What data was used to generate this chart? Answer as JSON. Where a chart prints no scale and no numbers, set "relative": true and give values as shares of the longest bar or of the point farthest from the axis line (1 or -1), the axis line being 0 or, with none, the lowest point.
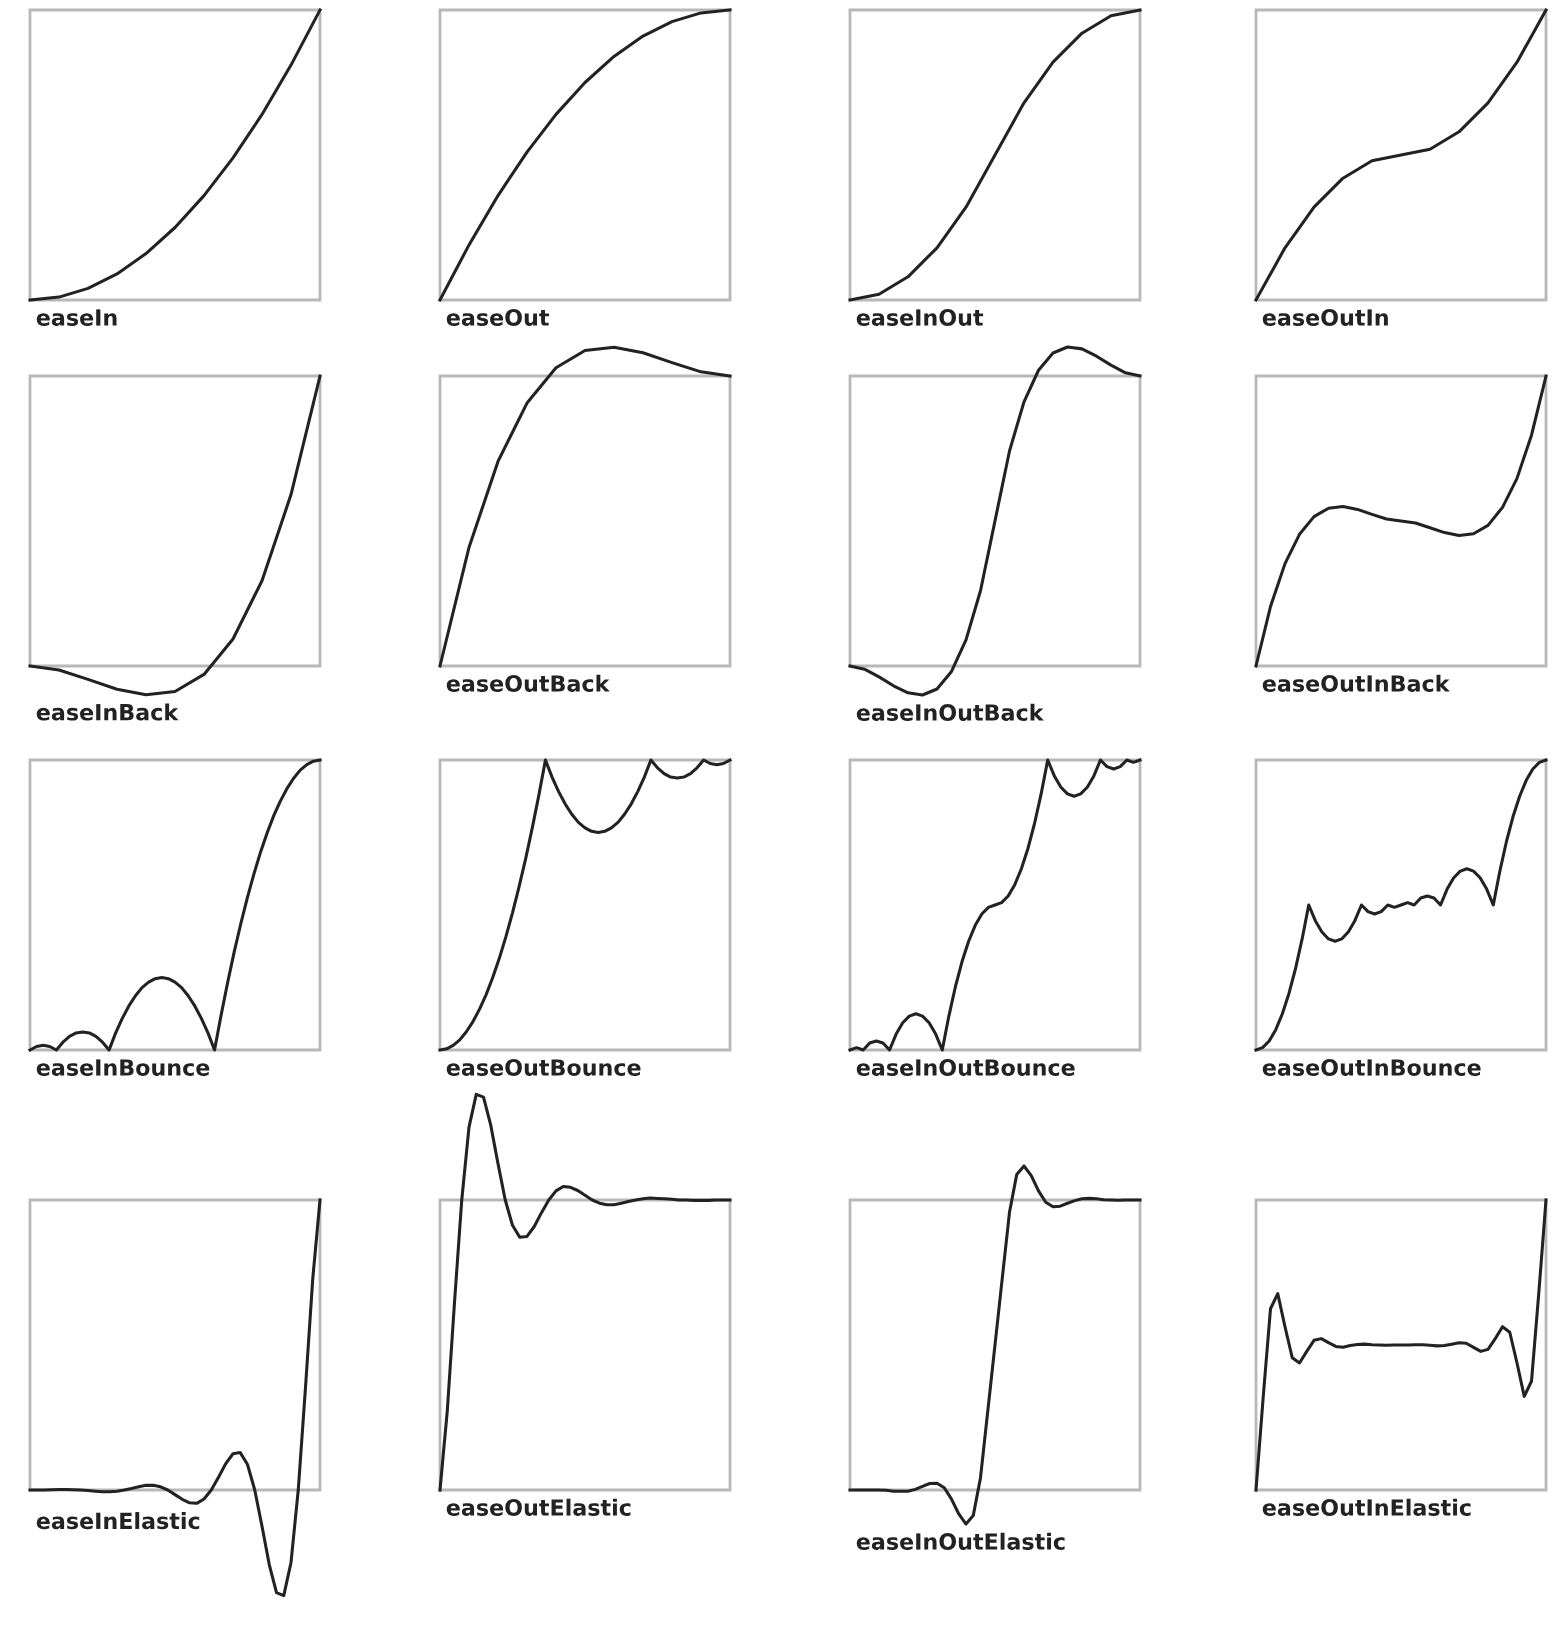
{
  "chart_data": [
    {
      "type": "line",
      "title": "easeIn",
      "relative": true,
      "categories": [
        null,
        null,
        null,
        null,
        null,
        null,
        null,
        null,
        null,
        null,
        null
      ],
      "series": [
        {
          "color": "#222222",
          "values": [
            0,
            0.01,
            0.04,
            0.09,
            0.16,
            0.25,
            0.36,
            0.49,
            0.64,
            0.81,
            1
          ]
        }
      ]
    },
    {
      "type": "line",
      "title": "easeOut",
      "relative": true,
      "categories": [
        null,
        null,
        null,
        null,
        null,
        null,
        null,
        null,
        null,
        null,
        null
      ],
      "series": [
        {
          "color": "#222222",
          "values": [
            0,
            0.19,
            0.36,
            0.51,
            0.64,
            0.75,
            0.84,
            0.91,
            0.96,
            0.99,
            1
          ]
        }
      ]
    },
    {
      "type": "line",
      "title": "easeInOut",
      "relative": true,
      "categories": [
        null,
        null,
        null,
        null,
        null,
        null,
        null,
        null,
        null,
        null,
        null
      ],
      "series": [
        {
          "color": "#222222",
          "values": [
            0,
            0.02,
            0.08,
            0.18,
            0.32,
            0.5,
            0.68,
            0.82,
            0.92,
            0.98,
            1
          ]
        }
      ]
    },
    {
      "type": "line",
      "title": "easeOutIn",
      "relative": true,
      "categories": [
        null,
        null,
        null,
        null,
        null,
        null,
        null,
        null,
        null,
        null,
        null
      ],
      "series": [
        {
          "color": "#222222",
          "values": [
            0,
            0.18,
            0.32,
            0.42,
            0.48,
            0.5,
            0.52,
            0.58,
            0.68,
            0.82,
            1
          ]
        }
      ]
    },
    {
      "type": "line",
      "title": "easeInBack",
      "relative": true,
      "categories": [
        null,
        null,
        null,
        null,
        null,
        null,
        null,
        null,
        null,
        null,
        null
      ],
      "series": [
        {
          "color": "#222222",
          "values": [
            0,
            -0.014,
            -0.046,
            -0.08,
            -0.099,
            -0.088,
            -0.029,
            0.093,
            0.294,
            0.591,
            1
          ]
        }
      ]
    },
    {
      "type": "line",
      "title": "easeOutBack",
      "relative": true,
      "categories": [
        null,
        null,
        null,
        null,
        null,
        null,
        null,
        null,
        null,
        null,
        null
      ],
      "series": [
        {
          "color": "#222222",
          "values": [
            0,
            0.372,
            0.642,
            0.825,
            0.936,
            0.99,
            1,
            0.983,
            0.952,
            0.923,
            0.91
          ]
        }
      ]
    },
    {
      "type": "line",
      "title": "easeInOutBack",
      "relative": true,
      "categories": [
        null,
        null,
        null,
        null,
        null,
        null,
        null,
        null,
        null,
        null,
        null,
        null,
        null,
        null,
        null,
        null,
        null,
        null,
        null,
        null,
        null
      ],
      "series": [
        {
          "color": "#222222",
          "values": [
            0,
            -0.01,
            -0.034,
            -0.062,
            -0.084,
            -0.091,
            -0.072,
            -0.017,
            0.082,
            0.236,
            0.455,
            0.674,
            0.828,
            0.927,
            0.981,
            1,
            0.994,
            0.971,
            0.943,
            0.919,
            0.909
          ]
        }
      ]
    },
    {
      "type": "line",
      "title": "easeOutInBack",
      "relative": true,
      "categories": [
        null,
        null,
        null,
        null,
        null,
        null,
        null,
        null,
        null,
        null,
        null,
        null,
        null,
        null,
        null,
        null,
        null,
        null,
        null,
        null,
        null
      ],
      "series": [
        {
          "color": "#222222",
          "values": [
            0,
            0.205,
            0.353,
            0.454,
            0.515,
            0.544,
            0.55,
            0.54,
            0.523,
            0.507,
            0.5,
            0.493,
            0.477,
            0.46,
            0.45,
            0.456,
            0.485,
            0.547,
            0.647,
            0.796,
            1
          ]
        }
      ]
    },
    {
      "type": "line",
      "title": "easeInBounce",
      "relative": true,
      "categories": [
        null,
        null,
        null,
        null,
        null,
        null,
        null,
        null,
        null,
        null,
        null,
        null,
        null,
        null,
        null,
        null,
        null,
        null,
        null,
        null,
        null,
        null,
        null,
        null,
        null,
        null,
        null,
        null,
        null,
        null,
        null,
        null,
        null,
        null,
        null,
        null,
        null,
        null,
        null,
        null,
        null,
        null,
        null,
        null,
        null
      ],
      "series": [
        {
          "color": "#222222",
          "values": [
            0,
            0.012,
            0.016,
            0.012,
            0,
            0.027,
            0.047,
            0.059,
            0.062,
            0.059,
            0.047,
            0.027,
            0,
            0.059,
            0.109,
            0.152,
            0.187,
            0.215,
            0.234,
            0.246,
            0.25,
            0.246,
            0.234,
            0.215,
            0.187,
            0.152,
            0.109,
            0.059,
            0,
            0.121,
            0.234,
            0.34,
            0.437,
            0.527,
            0.609,
            0.684,
            0.75,
            0.809,
            0.859,
            0.902,
            0.937,
            0.965,
            0.984,
            0.996,
            1
          ]
        }
      ]
    },
    {
      "type": "line",
      "title": "easeOutBounce",
      "relative": true,
      "categories": [
        null,
        null,
        null,
        null,
        null,
        null,
        null,
        null,
        null,
        null,
        null,
        null,
        null,
        null,
        null,
        null,
        null,
        null,
        null,
        null,
        null,
        null,
        null,
        null,
        null,
        null,
        null,
        null,
        null,
        null,
        null,
        null,
        null,
        null,
        null,
        null,
        null,
        null,
        null,
        null,
        null,
        null,
        null,
        null,
        null
      ],
      "series": [
        {
          "color": "#222222",
          "values": [
            0,
            0.004,
            0.016,
            0.035,
            0.063,
            0.098,
            0.141,
            0.191,
            0.25,
            0.316,
            0.391,
            0.473,
            0.563,
            0.66,
            0.766,
            0.879,
            1,
            0.941,
            0.891,
            0.848,
            0.813,
            0.785,
            0.766,
            0.754,
            0.75,
            0.754,
            0.766,
            0.785,
            0.813,
            0.848,
            0.891,
            0.941,
            1,
            0.973,
            0.953,
            0.941,
            0.938,
            0.941,
            0.953,
            0.973,
            1,
            0.988,
            0.984,
            0.988,
            1
          ]
        }
      ]
    },
    {
      "type": "line",
      "title": "easeInOutBounce",
      "relative": true,
      "categories": [
        null,
        null,
        null,
        null,
        null,
        null,
        null,
        null,
        null,
        null,
        null,
        null,
        null,
        null,
        null,
        null,
        null,
        null,
        null,
        null,
        null,
        null,
        null,
        null,
        null,
        null,
        null,
        null,
        null,
        null,
        null,
        null,
        null,
        null,
        null,
        null,
        null,
        null,
        null,
        null,
        null,
        null,
        null,
        null,
        null
      ],
      "series": [
        {
          "color": "#222222",
          "values": [
            0,
            0.008,
            0,
            0.024,
            0.031,
            0.024,
            0,
            0.055,
            0.094,
            0.117,
            0.125,
            0.117,
            0.094,
            0.055,
            0,
            0.117,
            0.219,
            0.305,
            0.375,
            0.43,
            0.469,
            0.492,
            0.5,
            0.508,
            0.531,
            0.57,
            0.625,
            0.695,
            0.781,
            0.883,
            1,
            0.945,
            0.906,
            0.883,
            0.875,
            0.883,
            0.906,
            0.945,
            1,
            0.977,
            0.969,
            0.977,
            1,
            0.992,
            1
          ]
        }
      ]
    },
    {
      "type": "line",
      "title": "easeOutInBounce",
      "relative": true,
      "categories": [
        null,
        null,
        null,
        null,
        null,
        null,
        null,
        null,
        null,
        null,
        null,
        null,
        null,
        null,
        null,
        null,
        null,
        null,
        null,
        null,
        null,
        null,
        null,
        null,
        null,
        null,
        null,
        null,
        null,
        null,
        null,
        null,
        null,
        null,
        null,
        null,
        null,
        null,
        null,
        null,
        null,
        null,
        null,
        null,
        null
      ],
      "series": [
        {
          "color": "#222222",
          "values": [
            0,
            0.008,
            0.031,
            0.07,
            0.125,
            0.195,
            0.281,
            0.383,
            0.5,
            0.446,
            0.407,
            0.383,
            0.375,
            0.383,
            0.407,
            0.446,
            0.5,
            0.477,
            0.469,
            0.477,
            0.5,
            0.492,
            0.5,
            0.508,
            0.5,
            0.524,
            0.531,
            0.524,
            0.5,
            0.555,
            0.594,
            0.617,
            0.625,
            0.617,
            0.594,
            0.555,
            0.5,
            0.617,
            0.719,
            0.805,
            0.875,
            0.93,
            0.969,
            0.992,
            1
          ]
        }
      ]
    },
    {
      "type": "line",
      "title": "easeInElastic",
      "relative": true,
      "categories": [
        null,
        null,
        null,
        null,
        null,
        null,
        null,
        null,
        null,
        null,
        null,
        null,
        null,
        null,
        null,
        null,
        null,
        null,
        null,
        null,
        null,
        null,
        null,
        null,
        null,
        null,
        null,
        null,
        null,
        null,
        null,
        null,
        null,
        null,
        null,
        null,
        null,
        null,
        null,
        null,
        null
      ],
      "series": [
        {
          "color": "#222222",
          "values": [
            0,
            0,
            0,
            0.001,
            0.002,
            0.002,
            0.001,
            0,
            -0.002,
            -0.004,
            -0.006,
            -0.006,
            -0.004,
            0,
            0.005,
            0.011,
            0.016,
            0.016,
            0.011,
            0,
            -0.016,
            -0.032,
            -0.044,
            -0.046,
            -0.031,
            0,
            0.044,
            0.091,
            0.125,
            0.129,
            0.088,
            0,
            -0.125,
            -0.257,
            -0.354,
            -0.364,
            -0.25,
            0,
            0.354,
            0.728,
            1
          ]
        }
      ]
    },
    {
      "type": "line",
      "title": "easeOutElastic",
      "relative": true,
      "categories": [
        null,
        null,
        null,
        null,
        null,
        null,
        null,
        null,
        null,
        null,
        null,
        null,
        null,
        null,
        null,
        null,
        null,
        null,
        null,
        null,
        null,
        null,
        null,
        null,
        null,
        null,
        null,
        null,
        null,
        null,
        null,
        null,
        null,
        null,
        null,
        null,
        null,
        null,
        null,
        null,
        null
      ],
      "series": [
        {
          "color": "#222222",
          "values": [
            0,
            0.199,
            0.474,
            0.733,
            0.917,
            1,
            0.993,
            0.922,
            0.825,
            0.733,
            0.669,
            0.639,
            0.641,
            0.666,
            0.701,
            0.733,
            0.756,
            0.767,
            0.765,
            0.757,
            0.745,
            0.733,
            0.725,
            0.721,
            0.721,
            0.725,
            0.729,
            0.733,
            0.736,
            0.738,
            0.737,
            0.736,
            0.735,
            0.733,
            0.733,
            0.732,
            0.732,
            0.732,
            0.733,
            0.733,
            0.733
          ]
        }
      ]
    },
    {
      "type": "line",
      "title": "easeInOutElastic",
      "relative": true,
      "categories": [
        null,
        null,
        null,
        null,
        null,
        null,
        null,
        null,
        null,
        null,
        null,
        null,
        null,
        null,
        null,
        null,
        null,
        null,
        null,
        null,
        null,
        null,
        null,
        null,
        null,
        null,
        null,
        null,
        null,
        null,
        null,
        null,
        null,
        null,
        null,
        null,
        null,
        null,
        null,
        null,
        null
      ],
      "series": [
        {
          "color": "#222222",
          "values": [
            0,
            0,
            0,
            0,
            0,
            -0.001,
            -0.004,
            -0.004,
            -0.004,
            0.002,
            0.011,
            0.02,
            0.021,
            0.007,
            -0.028,
            -0.074,
            -0.105,
            -0.079,
            0.038,
            0.243,
            0.448,
            0.653,
            0.857,
            0.974,
            1,
            0.97,
            0.923,
            0.888,
            0.874,
            0.876,
            0.885,
            0.893,
            0.899,
            0.9,
            0.899,
            0.896,
            0.895,
            0.894,
            0.895,
            0.895,
            0.895
          ]
        }
      ]
    },
    {
      "type": "line",
      "title": "easeOutInElastic",
      "relative": true,
      "categories": [
        null,
        null,
        null,
        null,
        null,
        null,
        null,
        null,
        null,
        null,
        null,
        null,
        null,
        null,
        null,
        null,
        null,
        null,
        null,
        null,
        null,
        null,
        null,
        null,
        null,
        null,
        null,
        null,
        null,
        null,
        null,
        null,
        null,
        null,
        null,
        null,
        null,
        null,
        null,
        null,
        null
      ],
      "series": [
        {
          "color": "#222222",
          "values": [
            0,
            0.323,
            0.625,
            0.677,
            0.563,
            0.456,
            0.438,
            0.478,
            0.516,
            0.522,
            0.508,
            0.495,
            0.492,
            0.498,
            0.502,
            0.503,
            0.501,
            0.5,
            0.499,
            0.5,
            0.5,
            0.5,
            0.501,
            0.501,
            0.499,
            0.497,
            0.498,
            0.503,
            0.508,
            0.506,
            0.492,
            0.478,
            0.485,
            0.522,
            0.563,
            0.544,
            0.438,
            0.323,
            0.375,
            0.677,
            1
          ]
        }
      ]
    }
  ]
}
